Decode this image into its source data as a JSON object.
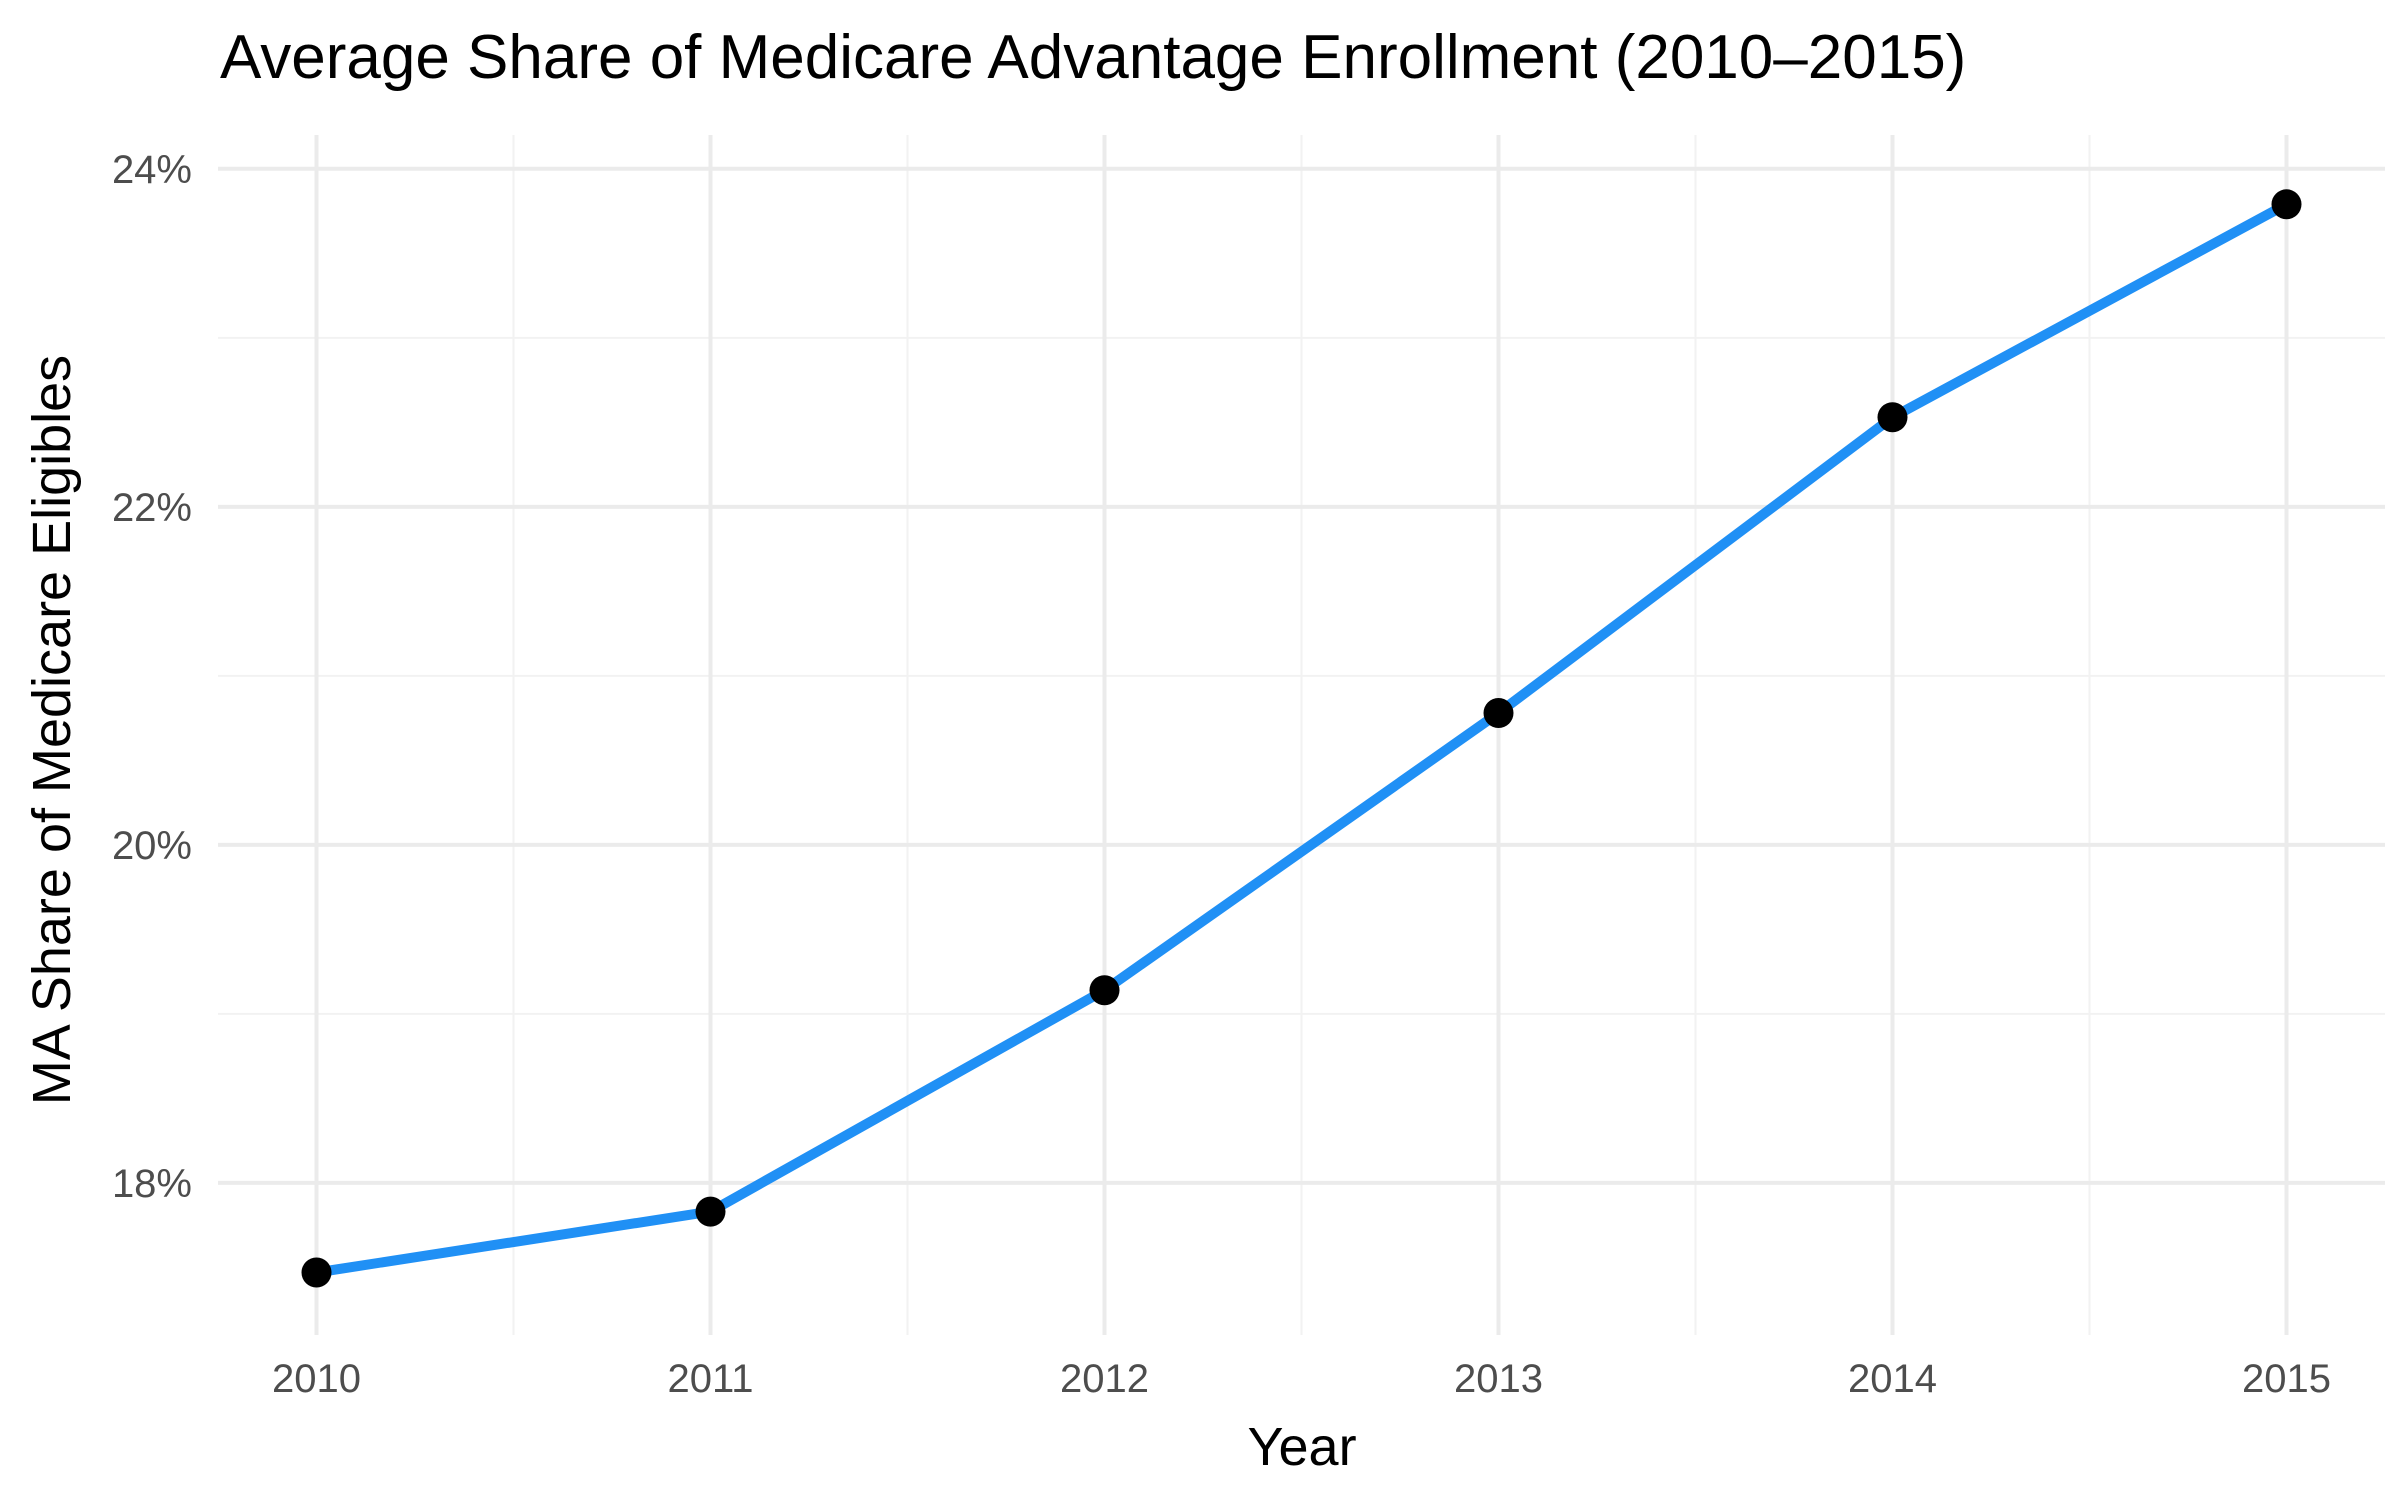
{
  "chart_data": {
    "type": "line",
    "title": "Average Share of Medicare Advantage Enrollment (2010–2015)",
    "xlabel": "Year",
    "ylabel": "MA Share of Medicare Eligibles",
    "x": [
      2010,
      2011,
      2012,
      2013,
      2014,
      2015
    ],
    "y_tick_values": [
      18,
      20,
      22,
      24
    ],
    "y_tick_labels": [
      "18%",
      "20%",
      "22%",
      "24%"
    ],
    "series": [
      {
        "values": [
          17.47,
          17.83,
          19.14,
          20.78,
          22.53,
          23.79
        ]
      }
    ],
    "xlim": [
      2009.75,
      2015.25
    ],
    "ylim": [
      17.1,
      24.2
    ],
    "grid": true,
    "colors": {
      "line": "#2090f5",
      "points": "#000000",
      "grid": "#ebebeb"
    }
  }
}
